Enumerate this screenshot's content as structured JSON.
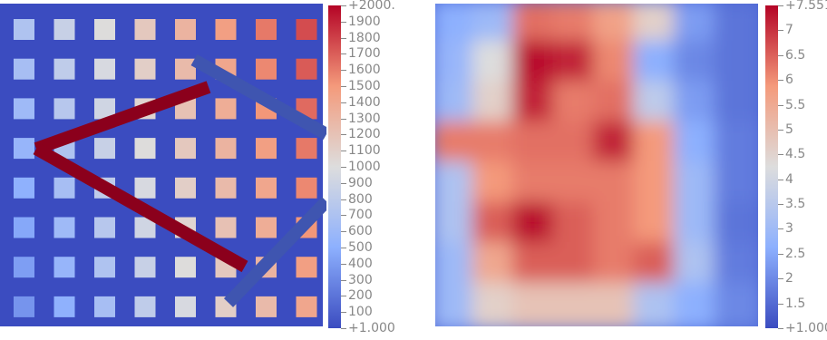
{
  "left_panel": {
    "colorbar": {
      "max_label": "+2000.",
      "min_label": "+1.000",
      "ticks": [
        "1900",
        "1800",
        "1700",
        "1600",
        "1500",
        "1400",
        "1300",
        "1200",
        "1100",
        "1000",
        "900",
        "800",
        "700",
        "600",
        "500",
        "400",
        "300",
        "200",
        "100"
      ]
    },
    "background_color": "#3b4cc0"
  },
  "right_panel": {
    "colorbar": {
      "max_label": "+7.551",
      "min_label": "+1.000",
      "ticks": [
        "7",
        "6.5",
        "6",
        "5.5",
        "5",
        "4.5",
        "4",
        "3.5",
        "3",
        "2.5",
        "2",
        "1.5"
      ]
    }
  },
  "colormap": "coolwarm"
}
